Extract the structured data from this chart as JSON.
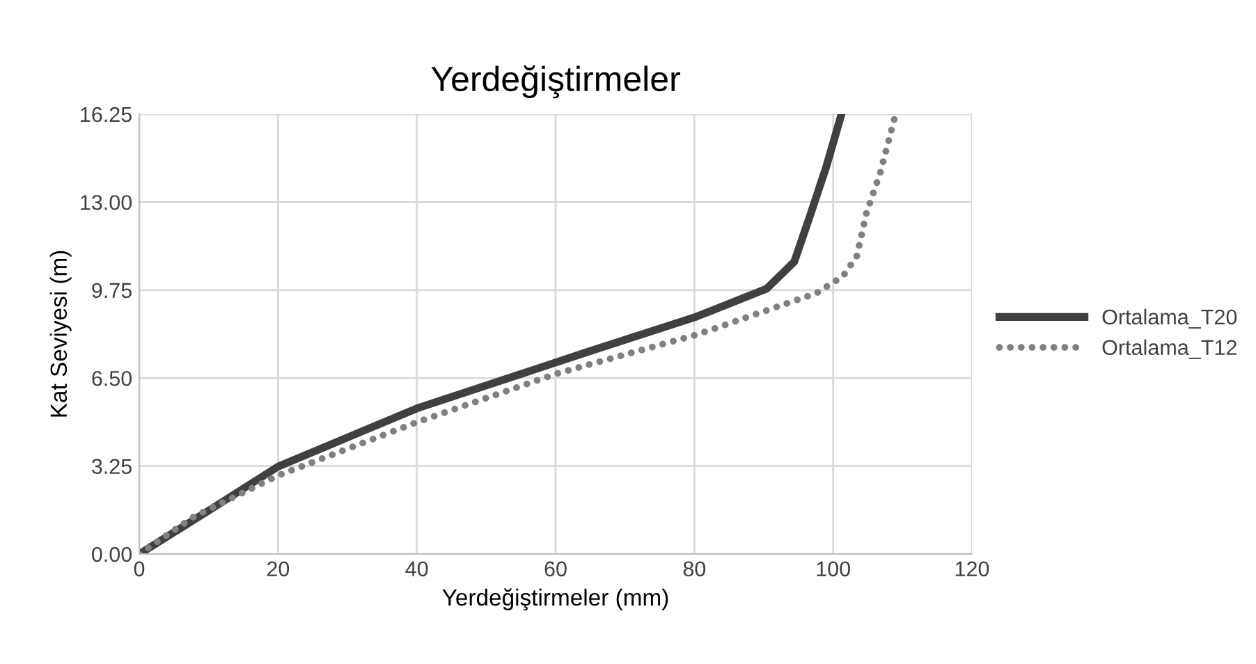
{
  "chart_data": {
    "type": "line",
    "title": "Yerdeğiştirmeler",
    "xlabel": "Yerdeğiştirmeler (mm)",
    "ylabel": "Kat Seviyesi (m)",
    "xlim": [
      0,
      120
    ],
    "xticks": [
      0,
      20,
      40,
      60,
      80,
      100,
      120
    ],
    "ylim": [
      0,
      16.25
    ],
    "yticks": [
      {
        "value": 0,
        "label": "0.00"
      },
      {
        "value": 3.25,
        "label": "3.25"
      },
      {
        "value": 6.5,
        "label": "6.50"
      },
      {
        "value": 9.75,
        "label": "9.75"
      },
      {
        "value": 13,
        "label": "13.00"
      },
      {
        "value": 16.25,
        "label": "16.25"
      }
    ],
    "grid": true,
    "legend": "right",
    "series": [
      {
        "name": "Ortalama_T20",
        "color": "#404040",
        "line_style": "solid",
        "x": [
          0,
          10.6,
          20,
          40,
          64.3,
          80.3,
          90.4,
          94.4,
          96.8,
          99,
          101.2
        ],
        "values": [
          0,
          1.7,
          3.23,
          5.38,
          7.44,
          8.77,
          9.8,
          10.8,
          12.6,
          14.3,
          16.25
        ]
      },
      {
        "name": "Ortalama_T12",
        "color": "#808080",
        "line_style": "dotted",
        "x": [
          0,
          8,
          20,
          40,
          60.2,
          80.3,
          97.6,
          101.4,
          103.4,
          104.8,
          106.8,
          109
        ],
        "values": [
          0,
          1.4,
          2.9,
          4.87,
          6.67,
          8.1,
          9.64,
          10.26,
          11.0,
          12.6,
          14.1,
          16.25
        ]
      }
    ]
  }
}
